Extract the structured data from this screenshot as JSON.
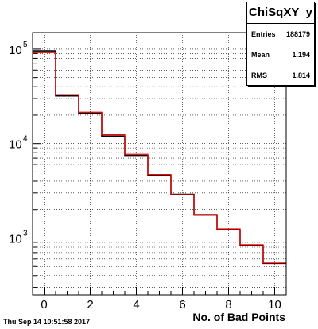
{
  "chart_data": {
    "type": "bar",
    "histogram": true,
    "categories": [
      "0",
      "1",
      "2",
      "3",
      "4",
      "5",
      "6",
      "7",
      "8",
      "9",
      "10"
    ],
    "series": [
      {
        "values": [
          96000,
          32000,
          21000,
          12000,
          7500,
          4600,
          2900,
          1750,
          1220,
          830,
          540
        ],
        "color": "#000000"
      },
      {
        "values": [
          92000,
          33000,
          21500,
          12400,
          7700,
          4700,
          2880,
          1780,
          1250,
          850,
          545
        ],
        "color": "#ff0000"
      }
    ],
    "title": "",
    "xlabel": "No. of Bad Points",
    "ylabel": "",
    "xlim": [
      -0.5,
      10.5
    ],
    "ylim": [
      250,
      150000
    ],
    "yscale": "log",
    "x_ticks": [
      "0",
      "2",
      "4",
      "6",
      "8",
      "10"
    ],
    "y_ticks": [
      {
        "base": "10",
        "exp": "3",
        "value": 1000
      },
      {
        "base": "10",
        "exp": "4",
        "value": 10000
      },
      {
        "base": "10",
        "exp": "5",
        "value": 100000
      }
    ],
    "grid": true
  },
  "stats": {
    "name": "ChiSqXY_y",
    "entries_label": "Entries",
    "entries_value": "188179",
    "mean_label": "Mean",
    "mean_value": "1.194",
    "rms_label": "RMS",
    "rms_value": "1.814"
  },
  "timestamp": "Thu Sep 14 10:51:58 2017"
}
